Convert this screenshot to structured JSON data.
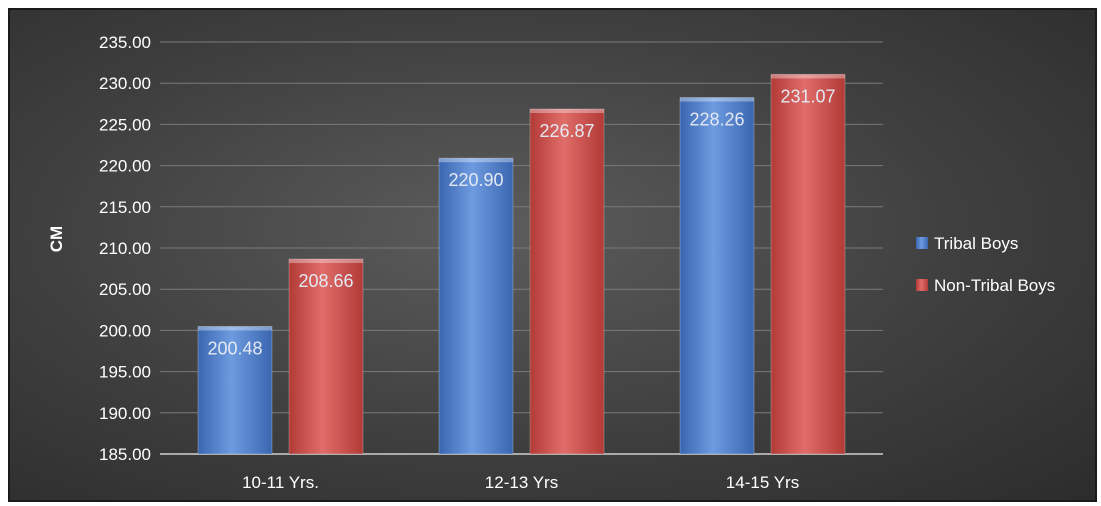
{
  "chart_data": {
    "type": "bar",
    "title": "",
    "xlabel": "",
    "ylabel": "CM",
    "ylim": [
      185,
      235
    ],
    "yticks": [
      "185.00",
      "190.00",
      "195.00",
      "200.00",
      "205.00",
      "210.00",
      "215.00",
      "220.00",
      "225.00",
      "230.00",
      "235.00"
    ],
    "categories": [
      "10-11 Yrs.",
      "12-13 Yrs",
      "14-15 Yrs"
    ],
    "grid": true,
    "legend_position": "right",
    "series": [
      {
        "name": "Tribal Boys",
        "values": [
          200.48,
          220.9,
          228.26
        ],
        "labels": [
          "200.48",
          "220.90",
          "228.26"
        ],
        "color": "#4a7bc8"
      },
      {
        "name": "Non-Tribal Boys",
        "values": [
          208.66,
          226.87,
          231.07
        ],
        "labels": [
          "208.66",
          "226.87",
          "231.07"
        ],
        "color": "#c8423f"
      }
    ]
  }
}
